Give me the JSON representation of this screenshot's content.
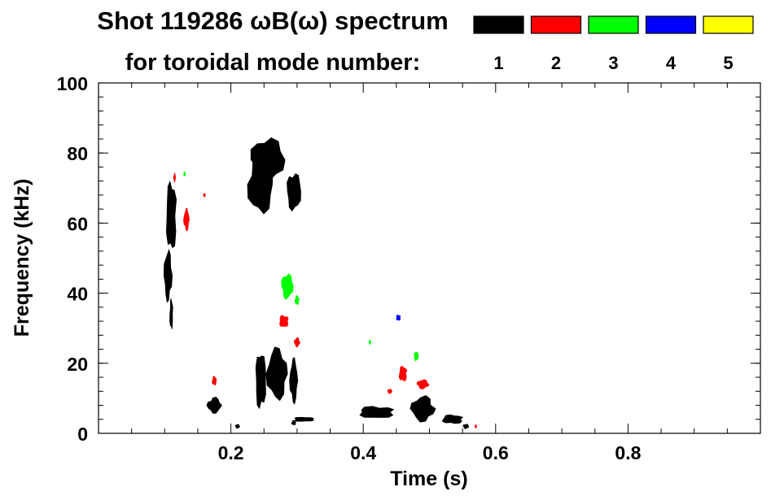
{
  "chart_data": {
    "type": "spectrogram",
    "title": "Shot 119286 ωB(ω) spectrum",
    "subtitle": "for toroidal mode number:",
    "xlabel": "Time (s)",
    "ylabel": "Frequency (kHz)",
    "xlim": [
      0,
      1.0
    ],
    "ylim": [
      0,
      100
    ],
    "x_ticks": [
      0.2,
      0.4,
      0.6,
      0.8
    ],
    "x_tick_labels": [
      "0.2",
      "0.4",
      "0.6",
      "0.8"
    ],
    "y_ticks": [
      0,
      20,
      40,
      60,
      80,
      100
    ],
    "y_tick_labels": [
      "0",
      "20",
      "40",
      "60",
      "80",
      "100"
    ],
    "legend": [
      {
        "label": "1",
        "color": "#000000"
      },
      {
        "label": "2",
        "color": "#ff0000"
      },
      {
        "label": "3",
        "color": "#00ff00"
      },
      {
        "label": "4",
        "color": "#0000ff"
      },
      {
        "label": "5",
        "color": "#ffff00"
      }
    ],
    "series": [
      {
        "name": "n=1",
        "color": "#000000",
        "blobs": [
          {
            "t": 0.11,
            "f": 62,
            "dt": 0.009,
            "df": 11
          },
          {
            "t": 0.105,
            "f": 45,
            "dt": 0.007,
            "df": 8
          },
          {
            "t": 0.11,
            "f": 34,
            "dt": 0.003,
            "df": 5
          },
          {
            "t": 0.255,
            "f": 78,
            "dt": 0.028,
            "df": 7
          },
          {
            "t": 0.245,
            "f": 71,
            "dt": 0.022,
            "df": 9
          },
          {
            "t": 0.295,
            "f": 69,
            "dt": 0.012,
            "df": 6
          },
          {
            "t": 0.27,
            "f": 17,
            "dt": 0.018,
            "df": 8
          },
          {
            "t": 0.245,
            "f": 15,
            "dt": 0.009,
            "df": 9
          },
          {
            "t": 0.295,
            "f": 15,
            "dt": 0.007,
            "df": 7
          },
          {
            "t": 0.31,
            "f": 4,
            "dt": 0.018,
            "df": 0.8
          },
          {
            "t": 0.175,
            "f": 8,
            "dt": 0.012,
            "df": 2.5
          },
          {
            "t": 0.42,
            "f": 6,
            "dt": 0.03,
            "df": 2
          },
          {
            "t": 0.49,
            "f": 7,
            "dt": 0.02,
            "df": 4
          },
          {
            "t": 0.535,
            "f": 4,
            "dt": 0.018,
            "df": 1.5
          },
          {
            "t": 0.21,
            "f": 2,
            "dt": 0.004,
            "df": 0.7
          },
          {
            "t": 0.295,
            "f": 3,
            "dt": 0.004,
            "df": 0.8
          },
          {
            "t": 0.555,
            "f": 2,
            "dt": 0.005,
            "df": 0.8
          }
        ]
      },
      {
        "name": "n=2",
        "color": "#ff0000",
        "blobs": [
          {
            "t": 0.133,
            "f": 61,
            "dt": 0.005,
            "df": 3.5
          },
          {
            "t": 0.16,
            "f": 68,
            "dt": 0.002,
            "df": 0.7
          },
          {
            "t": 0.115,
            "f": 73,
            "dt": 0.002,
            "df": 1.5
          },
          {
            "t": 0.28,
            "f": 32,
            "dt": 0.008,
            "df": 2
          },
          {
            "t": 0.3,
            "f": 26,
            "dt": 0.005,
            "df": 1.5
          },
          {
            "t": 0.46,
            "f": 17,
            "dt": 0.007,
            "df": 2.5
          },
          {
            "t": 0.49,
            "f": 14,
            "dt": 0.01,
            "df": 1.5
          },
          {
            "t": 0.175,
            "f": 15,
            "dt": 0.004,
            "df": 1.5
          },
          {
            "t": 0.44,
            "f": 12,
            "dt": 0.004,
            "df": 0.8
          },
          {
            "t": 0.57,
            "f": 2,
            "dt": 0.002,
            "df": 0.6
          }
        ]
      },
      {
        "name": "n=3",
        "color": "#00ff00",
        "blobs": [
          {
            "t": 0.285,
            "f": 42,
            "dt": 0.01,
            "df": 4
          },
          {
            "t": 0.3,
            "f": 38,
            "dt": 0.004,
            "df": 1.5
          },
          {
            "t": 0.48,
            "f": 22,
            "dt": 0.004,
            "df": 1.5
          },
          {
            "t": 0.41,
            "f": 26,
            "dt": 0.002,
            "df": 0.8
          },
          {
            "t": 0.13,
            "f": 74,
            "dt": 0.002,
            "df": 0.8
          }
        ]
      },
      {
        "name": "n=4",
        "color": "#0000ff",
        "blobs": [
          {
            "t": 0.453,
            "f": 33,
            "dt": 0.004,
            "df": 1
          }
        ]
      },
      {
        "name": "n=5",
        "color": "#ffff00",
        "blobs": []
      }
    ]
  }
}
